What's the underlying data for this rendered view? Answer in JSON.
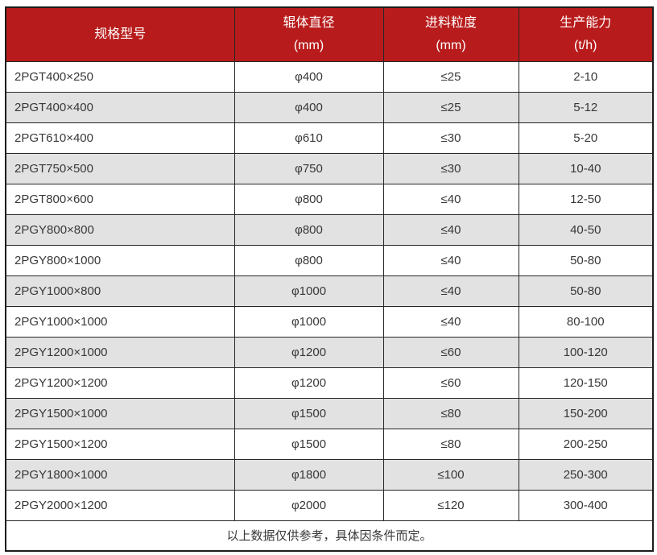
{
  "colors": {
    "header_bg": "#b81b1b",
    "header_text": "#ffffff",
    "row_alt_bg": "#e2e2e2",
    "row_bg": "#ffffff",
    "border": "#262626",
    "body_text": "#383838"
  },
  "table": {
    "headers": [
      {
        "label": "规格型号",
        "unit": ""
      },
      {
        "label": "辊体直径",
        "unit": "(mm)"
      },
      {
        "label": "进料粒度",
        "unit": "(mm)"
      },
      {
        "label": "生产能力",
        "unit": "(t/h)"
      }
    ],
    "rows": [
      {
        "model": "2PGT400×250",
        "roller_diameter": "φ400",
        "feed_size": "≤25",
        "capacity": "2-10"
      },
      {
        "model": "2PGT400×400",
        "roller_diameter": "φ400",
        "feed_size": "≤25",
        "capacity": "5-12"
      },
      {
        "model": "2PGT610×400",
        "roller_diameter": "φ610",
        "feed_size": "≤30",
        "capacity": "5-20"
      },
      {
        "model": "2PGT750×500",
        "roller_diameter": "φ750",
        "feed_size": "≤30",
        "capacity": "10-40"
      },
      {
        "model": "2PGT800×600",
        "roller_diameter": "φ800",
        "feed_size": "≤40",
        "capacity": "12-50"
      },
      {
        "model": "2PGY800×800",
        "roller_diameter": "φ800",
        "feed_size": "≤40",
        "capacity": "40-50"
      },
      {
        "model": "2PGY800×1000",
        "roller_diameter": "φ800",
        "feed_size": "≤40",
        "capacity": "50-80"
      },
      {
        "model": "2PGY1000×800",
        "roller_diameter": "φ1000",
        "feed_size": "≤40",
        "capacity": "50-80"
      },
      {
        "model": "2PGY1000×1000",
        "roller_diameter": "φ1000",
        "feed_size": "≤40",
        "capacity": "80-100"
      },
      {
        "model": "2PGY1200×1000",
        "roller_diameter": "φ1200",
        "feed_size": "≤60",
        "capacity": "100-120"
      },
      {
        "model": "2PGY1200×1200",
        "roller_diameter": "φ1200",
        "feed_size": "≤60",
        "capacity": "120-150"
      },
      {
        "model": "2PGY1500×1000",
        "roller_diameter": "φ1500",
        "feed_size": "≤80",
        "capacity": "150-200"
      },
      {
        "model": "2PGY1500×1200",
        "roller_diameter": "φ1500",
        "feed_size": "≤80",
        "capacity": "200-250"
      },
      {
        "model": "2PGY1800×1000",
        "roller_diameter": "φ1800",
        "feed_size": "≤100",
        "capacity": "250-300"
      },
      {
        "model": "2PGY2000×1200",
        "roller_diameter": "φ2000",
        "feed_size": "≤120",
        "capacity": "300-400"
      }
    ],
    "note": "以上数据仅供参考，具体因条件而定。"
  }
}
